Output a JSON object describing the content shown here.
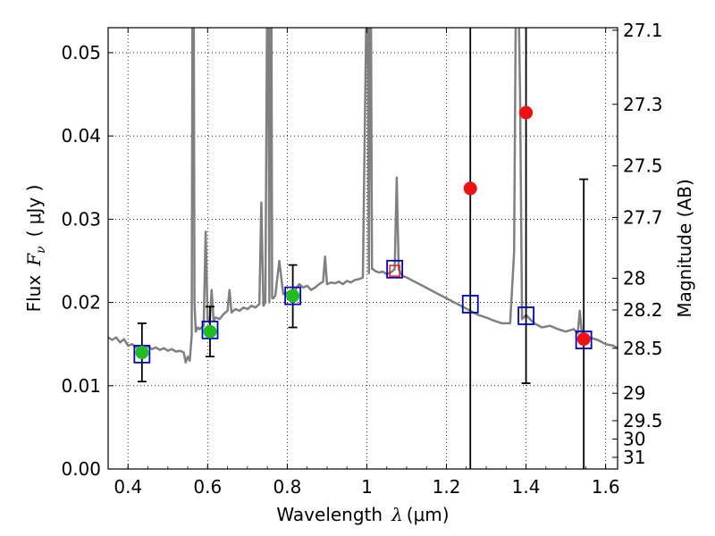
{
  "chart_data": {
    "type": "scatter",
    "xlabel": {
      "text": "Wavelength",
      "symbol": "λ",
      "unit": "(μm)"
    },
    "ylabel": {
      "text": "Flux",
      "symbol": "F",
      "subscript": "ν",
      "unit": "( μJy )"
    },
    "y2label": "Magnitude (AB)",
    "xlim": [
      0.35,
      1.63
    ],
    "ylim": [
      0.0,
      0.053
    ],
    "grid": true,
    "x_ticks": [
      0.4,
      0.6,
      0.8,
      1.0,
      1.2,
      1.4,
      1.6
    ],
    "x_tick_labels": [
      "0.4",
      "0.6",
      "0.8",
      "1",
      "1.2",
      "1.4",
      "1.6"
    ],
    "y_ticks": [
      0.0,
      0.01,
      0.02,
      0.03,
      0.04,
      0.05
    ],
    "y_tick_labels": [
      "0.00",
      "0.01",
      "0.02",
      "0.03",
      "0.04",
      "0.05"
    ],
    "y2_ticks": [
      {
        "label": "27.1",
        "flux": 0.0527
      },
      {
        "label": "27.3",
        "flux": 0.0438
      },
      {
        "label": "27.5",
        "flux": 0.0364
      },
      {
        "label": "27.7",
        "flux": 0.0302
      },
      {
        "label": "28",
        "flux": 0.0229
      },
      {
        "label": "28.2",
        "flux": 0.0191
      },
      {
        "label": "28.5",
        "flux": 0.0145
      },
      {
        "label": "29",
        "flux": 0.0091
      },
      {
        "label": "29.5",
        "flux": 0.0058
      },
      {
        "label": "30",
        "flux": 0.0036
      },
      {
        "label": "31",
        "flux": 0.0014
      }
    ],
    "series": [
      {
        "kind": "model_spectrum",
        "color": "#808080",
        "x": [
          0.35,
          0.36,
          0.37,
          0.38,
          0.39,
          0.4,
          0.41,
          0.42,
          0.43,
          0.44,
          0.45,
          0.46,
          0.47,
          0.48,
          0.49,
          0.5,
          0.51,
          0.52,
          0.53,
          0.54,
          0.545,
          0.55,
          0.555,
          0.56,
          0.562,
          0.565,
          0.567,
          0.57,
          0.575,
          0.58,
          0.59,
          0.595,
          0.6,
          0.605,
          0.61,
          0.615,
          0.62,
          0.63,
          0.64,
          0.65,
          0.655,
          0.66,
          0.67,
          0.68,
          0.69,
          0.7,
          0.71,
          0.72,
          0.73,
          0.735,
          0.74,
          0.745,
          0.75,
          0.752,
          0.755,
          0.757,
          0.76,
          0.762,
          0.765,
          0.77,
          0.78,
          0.79,
          0.8,
          0.81,
          0.82,
          0.83,
          0.84,
          0.85,
          0.86,
          0.87,
          0.88,
          0.89,
          0.895,
          0.9,
          0.91,
          0.92,
          0.93,
          0.94,
          0.95,
          0.96,
          0.97,
          0.98,
          0.99,
          1.0,
          1.002,
          1.005,
          1.008,
          1.01,
          1.013,
          1.016,
          1.02,
          1.03,
          1.04,
          1.05,
          1.06,
          1.07,
          1.075,
          1.08,
          1.085,
          1.09,
          1.1,
          1.12,
          1.14,
          1.16,
          1.18,
          1.2,
          1.22,
          1.24,
          1.26,
          1.28,
          1.3,
          1.32,
          1.34,
          1.36,
          1.37,
          1.375,
          1.38,
          1.385,
          1.39,
          1.4,
          1.42,
          1.44,
          1.46,
          1.48,
          1.5,
          1.52,
          1.53,
          1.535,
          1.54,
          1.55,
          1.56,
          1.58,
          1.6,
          1.62,
          1.63
        ],
        "y": [
          0.0158,
          0.0155,
          0.0158,
          0.0152,
          0.0156,
          0.0148,
          0.015,
          0.0146,
          0.0148,
          0.0145,
          0.0147,
          0.0144,
          0.0146,
          0.0143,
          0.0145,
          0.0142,
          0.0144,
          0.0141,
          0.0142,
          0.014,
          0.0128,
          0.0135,
          0.013,
          0.016,
          0.06,
          0.06,
          0.02,
          0.0165,
          0.017,
          0.0168,
          0.0172,
          0.0285,
          0.018,
          0.0175,
          0.0215,
          0.0178,
          0.0182,
          0.018,
          0.0186,
          0.019,
          0.0215,
          0.0188,
          0.0192,
          0.019,
          0.0194,
          0.0192,
          0.0196,
          0.0194,
          0.0198,
          0.032,
          0.0196,
          0.02,
          0.06,
          0.06,
          0.02,
          0.06,
          0.06,
          0.0205,
          0.0205,
          0.0208,
          0.025,
          0.021,
          0.0212,
          0.0214,
          0.0215,
          0.0222,
          0.0218,
          0.022,
          0.0215,
          0.0218,
          0.0222,
          0.0225,
          0.0255,
          0.0222,
          0.0224,
          0.0223,
          0.0225,
          0.0222,
          0.0226,
          0.0224,
          0.0227,
          0.0228,
          0.023,
          0.06,
          0.06,
          0.0235,
          0.06,
          0.06,
          0.024,
          0.024,
          0.0238,
          0.0236,
          0.0237,
          0.0234,
          0.0236,
          0.024,
          0.035,
          0.024,
          0.0235,
          0.0232,
          0.023,
          0.0225,
          0.022,
          0.0215,
          0.021,
          0.0205,
          0.02,
          0.0195,
          0.019,
          0.0185,
          0.0182,
          0.0178,
          0.0175,
          0.0175,
          0.026,
          0.06,
          0.06,
          0.045,
          0.018,
          0.0185,
          0.0175,
          0.017,
          0.0172,
          0.0168,
          0.0165,
          0.0168,
          0.0163,
          0.019,
          0.0165,
          0.016,
          0.0158,
          0.0155,
          0.015,
          0.0148,
          0.0145
        ]
      },
      {
        "kind": "model_photometry",
        "marker": "open-square",
        "color": "#0000cc",
        "x": [
          0.435,
          0.606,
          0.814,
          1.07,
          1.26,
          1.4,
          1.545
        ],
        "y": [
          0.0138,
          0.0167,
          0.0208,
          0.024,
          0.0198,
          0.0184,
          0.0155
        ]
      },
      {
        "kind": "observed_detection",
        "marker": "filled-circle",
        "color": "#22bb22",
        "x": [
          0.435,
          0.606,
          0.814
        ],
        "y": [
          0.014,
          0.0165,
          0.0208
        ],
        "yerr_low": [
          0.0105,
          0.0135,
          0.017
        ],
        "yerr_high": [
          0.0175,
          0.0195,
          0.0245
        ]
      },
      {
        "kind": "observed_upper_limit",
        "marker": "filled-circle",
        "color": "#ee1111",
        "x": [
          1.26,
          1.4,
          1.545
        ],
        "y": [
          0.0337,
          0.0428,
          0.0156
        ],
        "yerr_low": [
          0.0,
          0.0103,
          0.0
        ],
        "yerr_high": [
          0.06,
          0.06,
          0.0348
        ]
      },
      {
        "kind": "inner_marker",
        "marker": "open-square",
        "color": "#ee1111",
        "x": [
          1.07
        ],
        "y": [
          0.0238
        ]
      }
    ]
  }
}
